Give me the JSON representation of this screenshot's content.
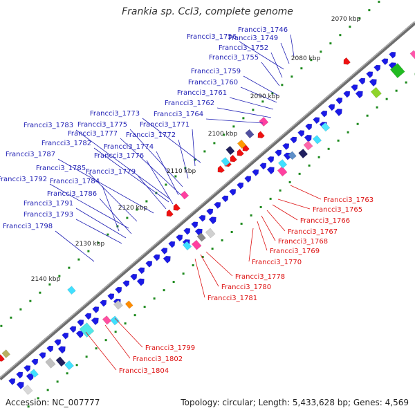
{
  "title": "Frankia sp. CcI3, complete genome",
  "footer": {
    "accession": "Accession: NC_007777",
    "stats": "Topology: circular; Length: 5,433,628 bp; Genes: 4,569"
  },
  "colors": {
    "forward_label": "#1f1fb4",
    "reverse_label": "#dd1111",
    "forward_gene": "#1a1ae6",
    "reverse_gene": "#ee1111",
    "backbone": "#777777",
    "tick": "#1e8a1e"
  },
  "kbp_ticks": [
    "2070 kbp",
    "2080 kbp",
    "2090 kbp",
    "2100 kbp",
    "2110 kbp",
    "2120 kbp",
    "2130 kbp",
    "2140 kbp"
  ],
  "forward_labels": [
    "Francci3_1746",
    "Francci3_1749",
    "Francci3_1756",
    "Francci3_1752",
    "Francci3_1755",
    "Francci3_1759",
    "Francci3_1760",
    "Francci3_1761",
    "Francci3_1762",
    "Francci3_1764",
    "Francci3_1773",
    "Francci3_1771",
    "Francci3_1783",
    "Francci3_1775",
    "Francci3_1772",
    "Francci3_1777",
    "Francci3_1782",
    "Francci3_1774",
    "Francci3_1787",
    "Francci3_1776",
    "Francci3_1785",
    "Francci3_1779",
    "Francci3_1792",
    "Francci3_1784",
    "Francci3_1786",
    "Francci3_1791",
    "Francci3_1793",
    "Francci3_1798"
  ],
  "reverse_labels": [
    "Francci3_1763",
    "Francci3_1765",
    "Francci3_1766",
    "Francci3_1767",
    "Francci3_1768",
    "Francci3_1769",
    "Francci3_1770",
    "Francci3_1778",
    "Francci3_1780",
    "Francci3_1781",
    "Francci3_1799",
    "Francci3_1802",
    "Francci3_1804"
  ]
}
